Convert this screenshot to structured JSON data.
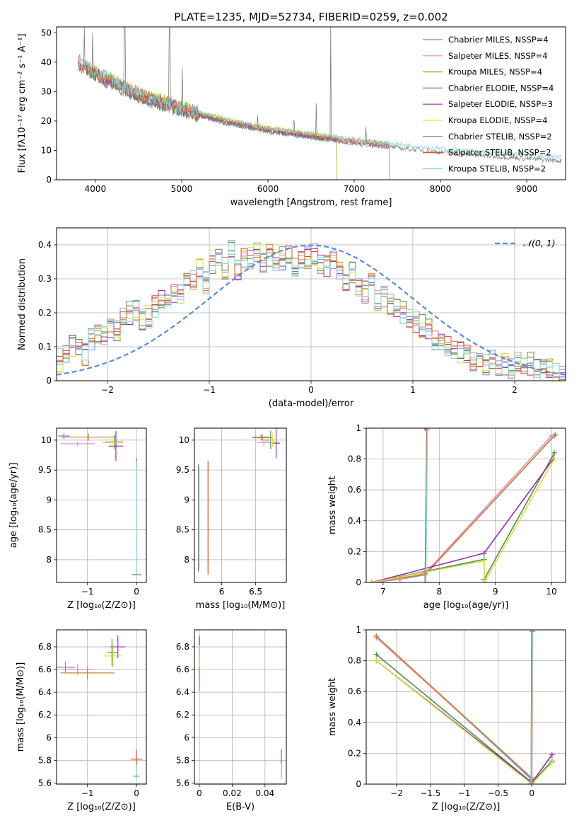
{
  "figure": {
    "title": "PLATE=1235, MJD=52734, FIBERID=0259, z=0.002"
  },
  "colors": {
    "chabrier_miles": "#6a8fd8",
    "salpeter_miles": "#e887b8",
    "kroupa_miles": "#c08a2e",
    "chabrier_elodie": "#4f8f4f",
    "salpeter_elodie": "#9a2bb0",
    "kroupa_elodie": "#d8e23a",
    "chabrier_stelib": "#707070",
    "salpeter_stelib": "#d9542a",
    "kroupa_stelib": "#7fd3d8",
    "normal_curve": "#5b8bd6",
    "grid": "#b0b0b0"
  },
  "chart_data": [
    {
      "id": "spectrum",
      "type": "line",
      "title": "PLATE=1235, MJD=52734, FIBERID=0259, z=0.002",
      "xlabel": "wavelength [Angstrom, rest frame]",
      "ylabel": "Flux [fλ10⁻¹⁷ erg cm⁻² s⁻¹ A⁻¹]",
      "xlim": [
        3550,
        9450
      ],
      "ylim": [
        0,
        52
      ],
      "xticks": [
        4000,
        5000,
        6000,
        7000,
        8000,
        9000
      ],
      "yticks": [
        0,
        10,
        20,
        30,
        40,
        50
      ],
      "grid": false,
      "legend_position": "top-right",
      "legend": [
        "Chabrier MILES, NSSP=4",
        "Salpeter MILES, NSSP=4",
        "Kroupa MILES, NSSP=4",
        "Chabrier ELODIE, NSSP=4",
        "Salpeter ELODIE, NSSP=3",
        "Kroupa ELODIE, NSSP=4",
        "Chabrier STELIB, NSSP=2",
        "Salpeter STELIB, NSSP=2",
        "Kroupa STELIB, NSSP=2"
      ],
      "continuum": [
        [
          3800,
          40
        ],
        [
          4000,
          36
        ],
        [
          4500,
          29
        ],
        [
          5000,
          24
        ],
        [
          5500,
          20
        ],
        [
          6000,
          17
        ],
        [
          6500,
          15
        ],
        [
          7000,
          13
        ],
        [
          7500,
          11.5
        ],
        [
          8000,
          10
        ],
        [
          8500,
          8.8
        ],
        [
          9000,
          7.8
        ],
        [
          9400,
          7
        ]
      ],
      "emission_lines": [
        [
          3870,
          52
        ],
        [
          3970,
          50
        ],
        [
          4340,
          52
        ],
        [
          4860,
          52
        ],
        [
          5010,
          38
        ],
        [
          6560,
          26
        ],
        [
          6730,
          52
        ],
        [
          6300,
          20
        ],
        [
          5880,
          22
        ],
        [
          7135,
          18
        ]
      ],
      "series": [
        {
          "name": "Chabrier MILES",
          "color": "chabrier_miles",
          "x_range": [
            3800,
            7410
          ],
          "cutoff": null
        },
        {
          "name": "Salpeter MILES",
          "color": "salpeter_miles",
          "x_range": [
            3800,
            7410
          ],
          "cutoff": null
        },
        {
          "name": "Kroupa MILES",
          "color": "kroupa_miles",
          "x_range": [
            3800,
            7410
          ],
          "cutoff": null
        },
        {
          "name": "Chabrier ELODIE",
          "color": "chabrier_elodie",
          "x_range": [
            3900,
            6800
          ],
          "cutoff": 6800
        },
        {
          "name": "Salpeter ELODIE",
          "color": "salpeter_elodie",
          "x_range": [
            3900,
            6800
          ],
          "cutoff": 6800
        },
        {
          "name": "Kroupa ELODIE",
          "color": "kroupa_elodie",
          "x_range": [
            3900,
            6800
          ],
          "cutoff": 6800
        },
        {
          "name": "Chabrier STELIB",
          "color": "chabrier_stelib",
          "x_range": [
            3800,
            9400
          ],
          "cutoff": null
        },
        {
          "name": "Salpeter STELIB",
          "color": "salpeter_stelib",
          "x_range": [
            3800,
            7410
          ],
          "cutoff": 7410
        },
        {
          "name": "Kroupa STELIB",
          "color": "kroupa_stelib",
          "x_range": [
            3800,
            9400
          ],
          "cutoff": null
        }
      ]
    },
    {
      "id": "residuals",
      "type": "line",
      "xlabel": "(data-model)/error",
      "ylabel": "Normed distribution",
      "xlim": [
        -2.5,
        2.5
      ],
      "ylim": [
        0,
        0.45
      ],
      "xticks": [
        -2,
        -1,
        0,
        1,
        2
      ],
      "yticks": [
        0.0,
        0.1,
        0.2,
        0.3,
        0.4
      ],
      "grid": true,
      "legend_position": "top-right",
      "legend": [
        "𝒩(0, 1)"
      ],
      "normal_curve": {
        "mean": 0,
        "sigma": 1
      },
      "bin_width": 0.1,
      "series_envelope": [
        0.06,
        0.08,
        0.1,
        0.09,
        0.08,
        0.12,
        0.14,
        0.13,
        0.16,
        0.15,
        0.18,
        0.2,
        0.21,
        0.18,
        0.19,
        0.22,
        0.24,
        0.22,
        0.26,
        0.25,
        0.31,
        0.3,
        0.34,
        0.29,
        0.35,
        0.37,
        0.33,
        0.38,
        0.32,
        0.36,
        0.36,
        0.38,
        0.34,
        0.37,
        0.35,
        0.36,
        0.38,
        0.34,
        0.35,
        0.36,
        0.37,
        0.35,
        0.34,
        0.36,
        0.33,
        0.3,
        0.32,
        0.28,
        0.26,
        0.28,
        0.24,
        0.25,
        0.22,
        0.21,
        0.2,
        0.19,
        0.17,
        0.16,
        0.15,
        0.12,
        0.11,
        0.1,
        0.09,
        0.08,
        0.07,
        0.06,
        0.07,
        0.05,
        0.06,
        0.05,
        0.05,
        0.04,
        0.05,
        0.04,
        0.05,
        0.03,
        0.04,
        0.03,
        0.02,
        0.02
      ]
    },
    {
      "id": "age_vs_Z",
      "type": "scatter",
      "xlabel": "Z [log₁₀(Z/Z⊙)]",
      "ylabel": "age  [log₁₀(age/yr)]",
      "xlim": [
        -1.63,
        0.2
      ],
      "ylim": [
        7.62,
        10.2
      ],
      "xticks": [
        -1,
        0
      ],
      "yticks": [
        8.0,
        8.5,
        9.0,
        9.5,
        10.0
      ],
      "grid": true,
      "points": [
        {
          "x": -1.48,
          "y": 10.07,
          "xerr": 0.12,
          "yerr": 0.05,
          "color": "chabrier_miles"
        },
        {
          "x": -1.2,
          "y": 9.94,
          "xerr": 0.35,
          "yerr": 0.04,
          "color": "salpeter_miles"
        },
        {
          "x": -0.98,
          "y": 10.05,
          "xerr": 0.55,
          "yerr": 0.06,
          "color": "kroupa_miles"
        },
        {
          "x": -0.45,
          "y": 9.97,
          "xerr": 0.18,
          "yerr": 0.12,
          "color": "chabrier_elodie"
        },
        {
          "x": -0.42,
          "y": 9.9,
          "xerr": 0.15,
          "yerr": 0.25,
          "color": "salpeter_elodie"
        },
        {
          "x": -0.5,
          "y": 9.96,
          "xerr": 0.2,
          "yerr": 0.08,
          "color": "kroupa_elodie"
        },
        {
          "x": 0.0,
          "y": 7.75,
          "xerr": 0.1,
          "yerr": 0.0,
          "color": "chabrier_stelib"
        },
        {
          "x": 0.0,
          "y": 9.6,
          "xerr": 0.0,
          "yerr": 0.1,
          "color": "salpeter_stelib"
        },
        {
          "x": 0.0,
          "y": 8.7,
          "xerr": 0.0,
          "yerr": 0.95,
          "color": "kroupa_stelib"
        }
      ]
    },
    {
      "id": "age_vs_mass",
      "type": "scatter",
      "xlabel": "mass [log₁₀(M/M⊙)]",
      "ylabel": "",
      "xlim": [
        5.6,
        6.95
      ],
      "ylim": [
        7.62,
        10.2
      ],
      "xticks": [
        6.0,
        6.5
      ],
      "yticks": [
        8.0,
        8.5,
        9.0,
        9.5,
        10.0
      ],
      "grid": true,
      "points": [
        {
          "x": 6.58,
          "y": 10.05,
          "xerr": 0.12,
          "yerr": 0.05,
          "color": "chabrier_miles"
        },
        {
          "x": 6.62,
          "y": 9.96,
          "xerr": 0.1,
          "yerr": 0.06,
          "color": "salpeter_miles"
        },
        {
          "x": 6.6,
          "y": 10.04,
          "xerr": 0.15,
          "yerr": 0.05,
          "color": "kroupa_miles"
        },
        {
          "x": 6.72,
          "y": 10.0,
          "xerr": 0.08,
          "yerr": 0.15,
          "color": "chabrier_elodie"
        },
        {
          "x": 6.8,
          "y": 9.95,
          "xerr": 0.06,
          "yerr": 0.25,
          "color": "salpeter_elodie"
        },
        {
          "x": 6.75,
          "y": 10.0,
          "xerr": 0.05,
          "yerr": 0.12,
          "color": "kroupa_elodie"
        },
        {
          "x": 5.66,
          "y": 8.7,
          "xerr": 0.0,
          "yerr": 0.9,
          "color": "chabrier_stelib"
        },
        {
          "x": 5.8,
          "y": 8.7,
          "xerr": 0.0,
          "yerr": 0.95,
          "color": "salpeter_stelib"
        },
        {
          "x": 5.67,
          "y": 8.7,
          "xerr": 0.0,
          "yerr": 0.85,
          "color": "kroupa_stelib"
        }
      ]
    },
    {
      "id": "cum_age",
      "type": "line",
      "xlabel": "age  [log₁₀(age/yr)]",
      "ylabel": "mass weight",
      "xlim": [
        6.7,
        10.25
      ],
      "ylim": [
        0,
        1.0
      ],
      "xticks": [
        7,
        8,
        9,
        10
      ],
      "yticks": [
        0.0,
        0.2,
        0.4,
        0.6,
        0.8,
        1.0
      ],
      "grid": true,
      "series": [
        {
          "color": "chabrier_miles",
          "x": [
            6.8,
            7.3,
            7.75,
            10.05
          ],
          "y": [
            0.0,
            0.02,
            0.05,
            0.95
          ]
        },
        {
          "color": "salpeter_miles",
          "x": [
            6.8,
            7.3,
            7.75,
            10.0
          ],
          "y": [
            0.0,
            0.02,
            0.06,
            0.95
          ]
        },
        {
          "color": "kroupa_miles",
          "x": [
            6.8,
            7.3,
            7.75,
            10.07
          ],
          "y": [
            0.0,
            0.03,
            0.05,
            0.96
          ]
        },
        {
          "color": "chabrier_elodie",
          "x": [
            6.8,
            8.8,
            8.8,
            10.05
          ],
          "y": [
            0.0,
            0.15,
            0.02,
            0.84
          ]
        },
        {
          "color": "salpeter_elodie",
          "x": [
            6.8,
            8.8,
            10.03
          ],
          "y": [
            0.0,
            0.19,
            0.8
          ]
        },
        {
          "color": "kroupa_elodie",
          "x": [
            6.8,
            8.8,
            8.8,
            10.05
          ],
          "y": [
            0.0,
            0.14,
            0.0,
            0.8
          ]
        },
        {
          "color": "chabrier_stelib",
          "x": [
            7.75,
            7.78,
            7.75
          ],
          "y": [
            0.0,
            1.0,
            1.0
          ]
        },
        {
          "color": "salpeter_stelib",
          "x": [
            7.75,
            7.78
          ],
          "y": [
            0.0,
            0.99
          ]
        },
        {
          "color": "kroupa_stelib",
          "x": [
            7.76,
            7.79
          ],
          "y": [
            0.0,
            1.0
          ]
        }
      ]
    },
    {
      "id": "mass_vs_Z",
      "type": "scatter",
      "xlabel": "Z [log₁₀(Z/Z⊙)]",
      "ylabel": "mass [log₁₀(M/M⊙)]",
      "xlim": [
        -1.63,
        0.2
      ],
      "ylim": [
        5.59,
        6.95
      ],
      "xticks": [
        -1,
        0
      ],
      "yticks": [
        5.6,
        5.8,
        6.0,
        6.2,
        6.4,
        6.6,
        6.8
      ],
      "grid": true,
      "points": [
        {
          "x": -1.45,
          "y": 6.62,
          "xerr": 0.2,
          "yerr": 0.05,
          "color": "chabrier_miles"
        },
        {
          "x": -1.2,
          "y": 6.6,
          "xerr": 0.3,
          "yerr": 0.05,
          "color": "salpeter_miles"
        },
        {
          "x": -1.0,
          "y": 6.57,
          "xerr": 0.55,
          "yerr": 0.06,
          "color": "kroupa_miles"
        },
        {
          "x": -0.5,
          "y": 6.75,
          "xerr": 0.1,
          "yerr": 0.12,
          "color": "chabrier_elodie"
        },
        {
          "x": -0.38,
          "y": 6.8,
          "xerr": 0.15,
          "yerr": 0.1,
          "color": "salpeter_elodie"
        },
        {
          "x": -0.48,
          "y": 6.72,
          "xerr": 0.18,
          "yerr": 0.1,
          "color": "kroupa_elodie"
        },
        {
          "x": 0.0,
          "y": 5.66,
          "xerr": 0.06,
          "yerr": 0.02,
          "color": "chabrier_stelib"
        },
        {
          "x": 0.0,
          "y": 5.81,
          "xerr": 0.12,
          "yerr": 0.08,
          "color": "salpeter_stelib"
        },
        {
          "x": 0.0,
          "y": 5.7,
          "xerr": 0.0,
          "yerr": 0.06,
          "color": "kroupa_stelib"
        }
      ]
    },
    {
      "id": "mass_vs_ebv",
      "type": "scatter",
      "xlabel": "E(B-V)",
      "ylabel": "",
      "xlim": [
        -0.003,
        0.053
      ],
      "ylim": [
        5.59,
        6.95
      ],
      "xticks": [
        0.0,
        0.02,
        0.04
      ],
      "yticks": [
        5.6,
        5.8,
        6.0,
        6.2,
        6.4,
        6.6,
        6.8
      ],
      "grid": true,
      "points": [
        {
          "x": 0.0,
          "y": 6.62,
          "xerr": 0.0,
          "yerr": 0.18,
          "color": "chabrier_miles"
        },
        {
          "x": 0.0,
          "y": 6.7,
          "xerr": 0.0,
          "yerr": 0.15,
          "color": "salpeter_miles"
        },
        {
          "x": 0.0,
          "y": 6.58,
          "xerr": 0.0,
          "yerr": 0.17,
          "color": "kroupa_miles"
        },
        {
          "x": 0.0,
          "y": 6.75,
          "xerr": 0.0,
          "yerr": 0.12,
          "color": "chabrier_elodie"
        },
        {
          "x": 0.0,
          "y": 6.82,
          "xerr": 0.0,
          "yerr": 0.08,
          "color": "salpeter_elodie"
        },
        {
          "x": 0.0,
          "y": 6.72,
          "xerr": 0.0,
          "yerr": 0.1,
          "color": "kroupa_elodie"
        },
        {
          "x": 0.05,
          "y": 5.68,
          "xerr": 0.0,
          "yerr": 0.04,
          "color": "chabrier_stelib"
        },
        {
          "x": 0.05,
          "y": 5.82,
          "xerr": 0.0,
          "yerr": 0.08,
          "color": "salpeter_stelib"
        },
        {
          "x": 0.05,
          "y": 5.7,
          "xerr": 0.0,
          "yerr": 0.07,
          "color": "kroupa_stelib"
        }
      ]
    },
    {
      "id": "cum_Z",
      "type": "line",
      "xlabel": "Z [log₁₀(Z/Z⊙)]",
      "ylabel": "mass weight",
      "xlim": [
        -2.45,
        0.5
      ],
      "ylim": [
        0,
        1.0
      ],
      "xticks": [
        -2.0,
        -1.5,
        -1.0,
        -0.5,
        0.0
      ],
      "yticks": [
        0.0,
        0.2,
        0.4,
        0.6,
        0.8,
        1.0
      ],
      "grid": true,
      "series": [
        {
          "color": "chabrier_miles",
          "x": [
            -2.3,
            0.0
          ],
          "y": [
            0.96,
            0.03
          ]
        },
        {
          "color": "salpeter_miles",
          "x": [
            -2.3,
            0.0
          ],
          "y": [
            0.95,
            0.04
          ]
        },
        {
          "color": "kroupa_miles",
          "x": [
            -2.3,
            0.0
          ],
          "y": [
            0.96,
            0.04
          ]
        },
        {
          "color": "chabrier_elodie",
          "x": [
            -2.3,
            0.0,
            0.3
          ],
          "y": [
            0.84,
            0.01,
            0.15
          ]
        },
        {
          "color": "salpeter_elodie",
          "x": [
            -2.3,
            0.0,
            0.3
          ],
          "y": [
            0.8,
            0.01,
            0.19
          ]
        },
        {
          "color": "kroupa_elodie",
          "x": [
            -2.3,
            0.0,
            0.3
          ],
          "y": [
            0.8,
            0.0,
            0.14
          ]
        },
        {
          "color": "chabrier_stelib",
          "x": [
            -0.01,
            0.0
          ],
          "y": [
            0.0,
            1.0
          ]
        },
        {
          "color": "salpeter_stelib",
          "x": [
            0.0,
            0.01
          ],
          "y": [
            0.0,
            0.99
          ]
        },
        {
          "color": "kroupa_stelib",
          "x": [
            -0.01,
            0.01
          ],
          "y": [
            0.0,
            1.0
          ]
        }
      ]
    }
  ]
}
